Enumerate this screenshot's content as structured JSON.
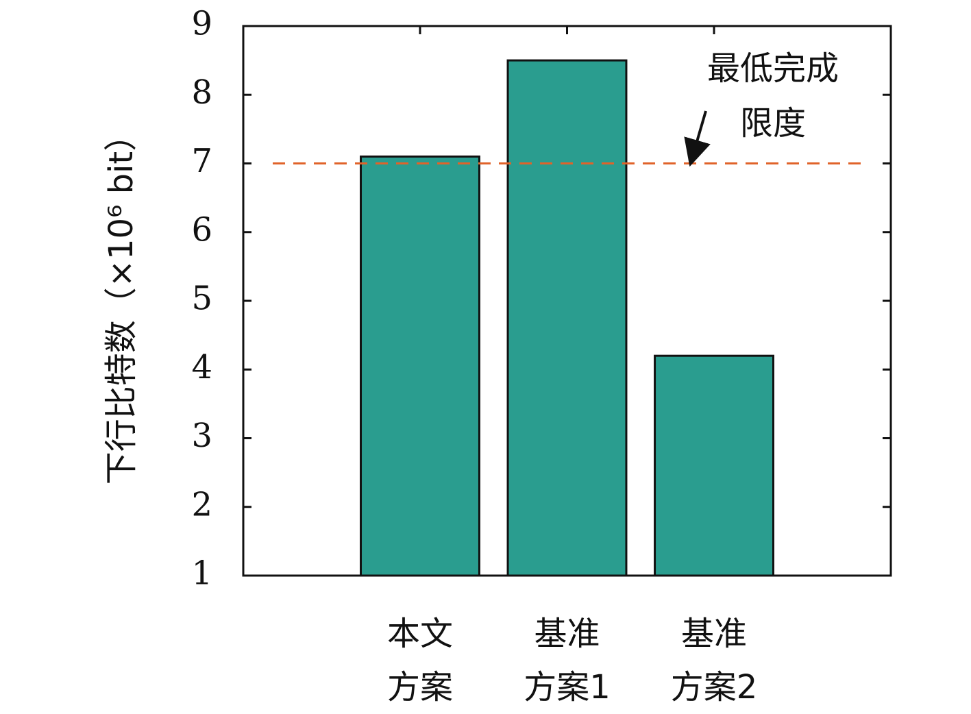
{
  "chart_data": {
    "type": "bar",
    "y_label": "下行比特数（×10⁶ bit）",
    "categories": [
      [
        "本文",
        "方案"
      ],
      [
        "基准",
        "方案1"
      ],
      [
        "基准",
        "方案2"
      ]
    ],
    "values": [
      7.1,
      8.5,
      4.2
    ],
    "color": "#2a9d8f",
    "ylim": [
      1,
      9
    ],
    "yticks": [
      1,
      2,
      3,
      4,
      5,
      6,
      7,
      8,
      9
    ],
    "reference_line": {
      "value": 7,
      "color": "#e0632a"
    },
    "annotation": [
      "最低完成",
      "限度"
    ]
  }
}
